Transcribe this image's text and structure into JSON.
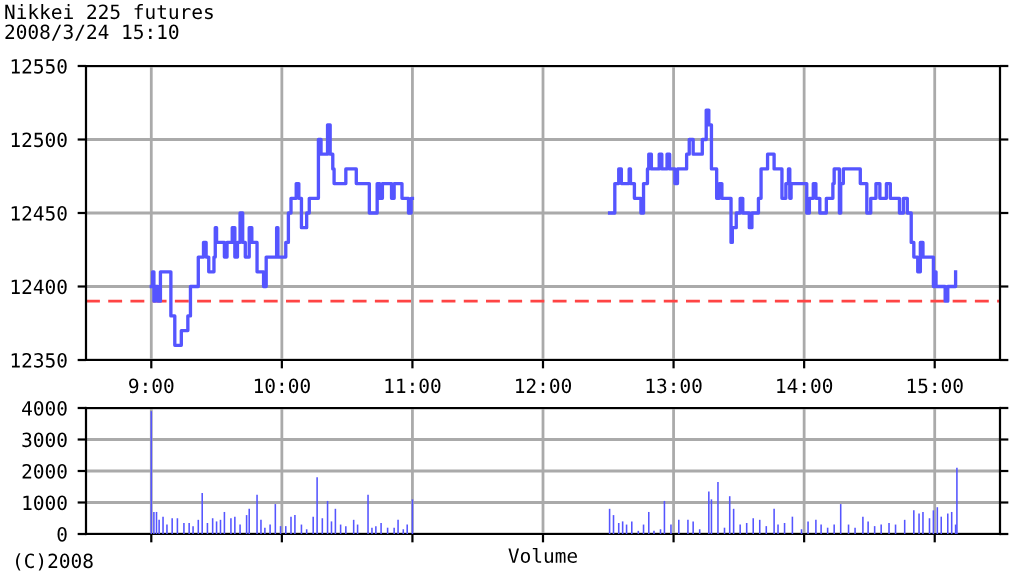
{
  "chart_data": [
    {
      "type": "step",
      "title": "Nikkei 225 futures",
      "subtitle": "2008/3/24 15:10",
      "series": [
        {
          "color": "#5555ff",
          "x": [
            9.0,
            9.01,
            9.02,
            9.03,
            9.05,
            9.07,
            9.15,
            9.18,
            9.23,
            9.28,
            9.3,
            9.36,
            9.4,
            9.42,
            9.44,
            9.48,
            9.49,
            9.5,
            9.56,
            9.58,
            9.62,
            9.64,
            9.66,
            9.68,
            9.7,
            9.72,
            9.75,
            9.77,
            9.81,
            9.86,
            9.88,
            9.96,
            9.97,
            10.03,
            10.05,
            10.07,
            10.11,
            10.13,
            10.15,
            10.19,
            10.21,
            10.28,
            10.3,
            10.35,
            10.37,
            10.39,
            10.4,
            10.49,
            10.57,
            10.67,
            10.73,
            10.75,
            10.77,
            10.84,
            10.86,
            10.92,
            10.97,
            10.99,
            11.0,
            11.5,
            12.51,
            12.55,
            12.58,
            12.6,
            12.66,
            12.67,
            12.7,
            12.75,
            12.77,
            12.8,
            12.81,
            12.83,
            12.89,
            12.91,
            12.95,
            12.97,
            13.01,
            13.03,
            13.1,
            13.12,
            13.15,
            13.22,
            13.25,
            13.27,
            13.29,
            13.33,
            13.35,
            13.37,
            13.44,
            13.45,
            13.48,
            13.51,
            13.53,
            13.58,
            13.6,
            13.65,
            13.67,
            13.72,
            13.77,
            13.83,
            13.86,
            13.88,
            13.89,
            13.9,
            14.02,
            14.04,
            14.07,
            14.09,
            14.12,
            14.17,
            14.22,
            14.23,
            14.27,
            14.28,
            14.3,
            14.41,
            14.43,
            14.48,
            14.51,
            14.55,
            14.58,
            14.63,
            14.66,
            14.73,
            14.76,
            14.79,
            14.82,
            14.84,
            14.87,
            14.89,
            14.91,
            14.99,
            15.0,
            15.01,
            15.08,
            15.1,
            15.16
          ],
          "values": [
            12400,
            12410,
            12390,
            12400,
            12390,
            12410,
            12380,
            12360,
            12370,
            12380,
            12400,
            12420,
            12430,
            12420,
            12410,
            12420,
            12440,
            12430,
            12420,
            12430,
            12440,
            12420,
            12430,
            12450,
            12430,
            12420,
            12440,
            12430,
            12410,
            12400,
            12420,
            12440,
            12420,
            12430,
            12450,
            12460,
            12470,
            12460,
            12440,
            12450,
            12460,
            12500,
            12490,
            12510,
            12490,
            12480,
            12470,
            12480,
            12470,
            12450,
            12470,
            12460,
            12470,
            12460,
            12470,
            12460,
            12450,
            12460,
            12460,
            null,
            12450,
            12470,
            12480,
            12470,
            12480,
            12470,
            12460,
            12450,
            12470,
            12480,
            12490,
            12480,
            12490,
            12480,
            12490,
            12480,
            12470,
            12480,
            12490,
            12500,
            12490,
            12500,
            12520,
            12510,
            12480,
            12460,
            12470,
            12460,
            12430,
            12440,
            12450,
            12460,
            12450,
            12440,
            12450,
            12460,
            12480,
            12490,
            12480,
            12460,
            12470,
            12480,
            12460,
            12470,
            12450,
            12460,
            12470,
            12460,
            12450,
            12460,
            12470,
            12480,
            12450,
            12470,
            12480,
            12480,
            12470,
            12450,
            12460,
            12470,
            12460,
            12470,
            12460,
            12450,
            12460,
            12450,
            12430,
            12420,
            12410,
            12430,
            12420,
            12400,
            12410,
            12400,
            12390,
            12400,
            12410
          ]
        }
      ],
      "xlim": [
        8.5,
        15.5
      ],
      "xticks": [
        {
          "value": 9,
          "label": "9:00"
        },
        {
          "value": 10,
          "label": "10:00"
        },
        {
          "value": 11,
          "label": "11:00"
        },
        {
          "value": 12,
          "label": "12:00"
        },
        {
          "value": 13,
          "label": "13:00"
        },
        {
          "value": 14,
          "label": "14:00"
        },
        {
          "value": 15,
          "label": "15:00"
        }
      ],
      "ylim": [
        12350,
        12550
      ],
      "yticks": [
        12350,
        12400,
        12450,
        12500,
        12550
      ],
      "grid": true,
      "ref_lines": [
        {
          "axis": "y",
          "value": 12390,
          "color": "#ff4444",
          "line_style": "dashed"
        }
      ]
    },
    {
      "type": "bar",
      "xlabel": "Volume",
      "annotations": [
        "(C)2008"
      ],
      "tick_labels": "y",
      "grid": true,
      "series": [
        {
          "color": "#5555ff",
          "x": [
            9.0,
            9.02,
            9.04,
            9.06,
            9.09,
            9.12,
            9.16,
            9.2,
            9.25,
            9.29,
            9.32,
            9.36,
            9.39,
            9.43,
            9.47,
            9.5,
            9.53,
            9.56,
            9.61,
            9.64,
            9.68,
            9.73,
            9.75,
            9.81,
            9.84,
            9.87,
            9.91,
            9.95,
            9.99,
            10.03,
            10.07,
            10.1,
            10.15,
            10.19,
            10.24,
            10.27,
            10.31,
            10.35,
            10.38,
            10.41,
            10.45,
            10.49,
            10.55,
            10.58,
            10.66,
            10.69,
            10.72,
            10.76,
            10.81,
            10.86,
            10.89,
            10.93,
            10.96,
            11.0,
            12.51,
            12.54,
            12.58,
            12.61,
            12.64,
            12.68,
            12.73,
            12.77,
            12.81,
            12.85,
            12.9,
            12.93,
            12.98,
            13.04,
            13.11,
            13.15,
            13.2,
            13.27,
            13.29,
            13.34,
            13.39,
            13.43,
            13.46,
            13.51,
            13.56,
            13.61,
            13.66,
            13.71,
            13.77,
            13.8,
            13.85,
            13.91,
            13.98,
            14.03,
            14.09,
            14.13,
            14.18,
            14.23,
            14.28,
            14.34,
            14.39,
            14.45,
            14.49,
            14.54,
            14.59,
            14.65,
            14.7,
            14.77,
            14.84,
            14.88,
            14.91,
            14.96,
            14.99,
            15.02,
            15.05,
            15.1,
            15.13,
            15.16,
            15.17
          ],
          "values": [
            3900,
            700,
            700,
            450,
            550,
            300,
            500,
            500,
            350,
            350,
            250,
            450,
            1300,
            350,
            500,
            400,
            450,
            700,
            500,
            550,
            300,
            600,
            800,
            1250,
            450,
            200,
            300,
            950,
            250,
            250,
            550,
            600,
            300,
            150,
            550,
            1800,
            500,
            1050,
            400,
            800,
            300,
            250,
            450,
            300,
            1250,
            200,
            250,
            350,
            200,
            200,
            450,
            150,
            300,
            1100,
            800,
            600,
            350,
            400,
            300,
            400,
            100,
            300,
            700,
            100,
            150,
            1050,
            300,
            450,
            450,
            400,
            150,
            1350,
            1100,
            1650,
            200,
            1200,
            800,
            300,
            350,
            500,
            450,
            250,
            800,
            300,
            350,
            550,
            150,
            400,
            450,
            300,
            200,
            300,
            950,
            300,
            200,
            550,
            400,
            250,
            300,
            350,
            300,
            450,
            750,
            650,
            700,
            500,
            750,
            850,
            550,
            650,
            700,
            300,
            2100
          ]
        }
      ],
      "xlim": [
        8.5,
        15.5
      ],
      "xticks": [
        {
          "value": 9,
          "label": null
        },
        {
          "value": 10,
          "label": null
        },
        {
          "value": 11,
          "label": null
        },
        {
          "value": 12,
          "label": null
        },
        {
          "value": 13,
          "label": null
        },
        {
          "value": 14,
          "label": null
        },
        {
          "value": 15,
          "label": null
        }
      ],
      "ylim": [
        0,
        4000
      ],
      "yticks": [
        0,
        1000,
        2000,
        3000,
        4000
      ]
    }
  ]
}
